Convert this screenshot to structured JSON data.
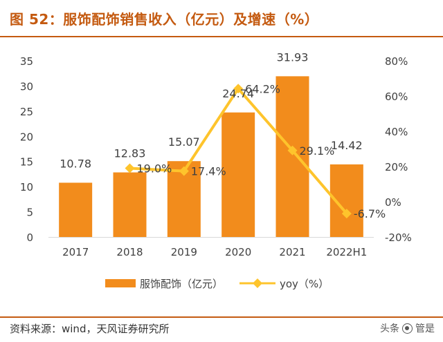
{
  "title": "图 52：服饰配饰销售收入（亿元）及增速（%）",
  "source": "资料来源：wind，天风证券研究所",
  "watermark": {
    "prefix": "头条",
    "account": "管是"
  },
  "colors": {
    "bar": "#f28c1c",
    "line": "#fec42c",
    "title": "#c45a10",
    "text": "#404040"
  },
  "chart_data": {
    "type": "bar+line",
    "categories": [
      "2017",
      "2018",
      "2019",
      "2020",
      "2021",
      "2022H1"
    ],
    "series": [
      {
        "name": "服饰配饰（亿元）",
        "type": "bar",
        "axis": "left",
        "values": [
          10.78,
          12.83,
          15.07,
          24.74,
          31.93,
          14.42
        ],
        "labels": [
          "10.78",
          "12.83",
          "15.07",
          "24.74",
          "31.93",
          "14.42"
        ]
      },
      {
        "name": "yoy（%）",
        "type": "line",
        "axis": "right",
        "values": [
          null,
          19.0,
          17.4,
          64.2,
          29.1,
          -6.7
        ],
        "labels": [
          "",
          "19.0%",
          "17.4%",
          "64.2%",
          "29.1%",
          "-6.7%"
        ]
      }
    ],
    "y_left": {
      "min": 0,
      "max": 35,
      "ticks": [
        "0",
        "5",
        "10",
        "15",
        "20",
        "25",
        "30",
        "35"
      ]
    },
    "y_right": {
      "min": -20,
      "max": 80,
      "ticks": [
        "-20%",
        "0%",
        "20%",
        "40%",
        "60%",
        "80%"
      ]
    },
    "legend": {
      "position": "bottom",
      "items": [
        "服饰配饰（亿元）",
        "yoy（%）"
      ]
    }
  }
}
